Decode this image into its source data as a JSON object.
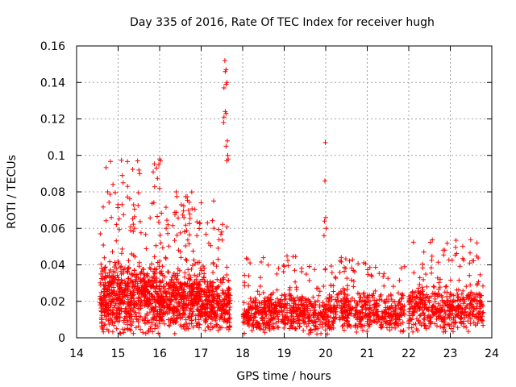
{
  "chart_data": {
    "type": "scatter",
    "title": "Day 335 of 2016, Rate Of TEC Index for receiver hugh",
    "xlabel": "GPS time / hours",
    "ylabel": "ROTI / TECUs",
    "xlim": [
      14,
      24
    ],
    "ylim": [
      0,
      0.16
    ],
    "grid": true,
    "marker": "+",
    "color": "#ff0000",
    "x_ticks": [
      "14",
      "15",
      "16",
      "17",
      "18",
      "19",
      "20",
      "21",
      "22",
      "23",
      "24"
    ],
    "y_ticks": [
      "0",
      "0.02",
      "0.04",
      "0.06",
      "0.08",
      "0.1",
      "0.12",
      "0.14",
      "0.16"
    ],
    "series": [
      {
        "name": "ROTI",
        "segments": [
          {
            "x_start": 14.55,
            "x_end": 16.0,
            "base": 0.022,
            "spread": 0.018,
            "peak": 0.098,
            "n": 700
          },
          {
            "x_start": 16.0,
            "x_end": 17.1,
            "base": 0.02,
            "spread": 0.016,
            "peak": 0.08,
            "n": 520
          },
          {
            "x_start": 17.1,
            "x_end": 17.7,
            "base": 0.018,
            "spread": 0.014,
            "peak": 0.065,
            "n": 260
          },
          {
            "x_start": 18.0,
            "x_end": 19.5,
            "base": 0.014,
            "spread": 0.01,
            "peak": 0.045,
            "n": 420
          },
          {
            "x_start": 19.5,
            "x_end": 20.2,
            "base": 0.012,
            "spread": 0.01,
            "peak": 0.04,
            "n": 180
          },
          {
            "x_start": 20.2,
            "x_end": 21.9,
            "base": 0.014,
            "spread": 0.01,
            "peak": 0.045,
            "n": 420
          },
          {
            "x_start": 22.0,
            "x_end": 23.8,
            "base": 0.016,
            "spread": 0.012,
            "peak": 0.055,
            "n": 480
          }
        ],
        "spikes": [
          {
            "x": 17.57,
            "y": 0.152
          },
          {
            "x": 17.6,
            "y": 0.147
          },
          {
            "x": 17.58,
            "y": 0.146
          },
          {
            "x": 17.62,
            "y": 0.14
          },
          {
            "x": 17.6,
            "y": 0.139
          },
          {
            "x": 17.55,
            "y": 0.137
          },
          {
            "x": 17.58,
            "y": 0.124
          },
          {
            "x": 17.6,
            "y": 0.123
          },
          {
            "x": 17.55,
            "y": 0.121
          },
          {
            "x": 17.54,
            "y": 0.118
          },
          {
            "x": 17.63,
            "y": 0.108
          },
          {
            "x": 17.6,
            "y": 0.105
          },
          {
            "x": 17.64,
            "y": 0.1
          },
          {
            "x": 17.65,
            "y": 0.098
          },
          {
            "x": 17.62,
            "y": 0.097
          },
          {
            "x": 19.99,
            "y": 0.107
          },
          {
            "x": 19.98,
            "y": 0.086
          },
          {
            "x": 20.0,
            "y": 0.066
          },
          {
            "x": 19.97,
            "y": 0.064
          },
          {
            "x": 20.01,
            "y": 0.06
          },
          {
            "x": 19.96,
            "y": 0.056
          },
          {
            "x": 15.47,
            "y": 0.097
          },
          {
            "x": 15.5,
            "y": 0.092
          },
          {
            "x": 15.52,
            "y": 0.09
          },
          {
            "x": 16.0,
            "y": 0.098
          },
          {
            "x": 16.02,
            "y": 0.097
          },
          {
            "x": 15.98,
            "y": 0.095
          },
          {
            "x": 15.1,
            "y": 0.089
          },
          {
            "x": 15.12,
            "y": 0.085
          },
          {
            "x": 14.75,
            "y": 0.08
          },
          {
            "x": 16.4,
            "y": 0.08
          },
          {
            "x": 17.0,
            "y": 0.074
          },
          {
            "x": 17.3,
            "y": 0.075
          }
        ]
      }
    ]
  }
}
